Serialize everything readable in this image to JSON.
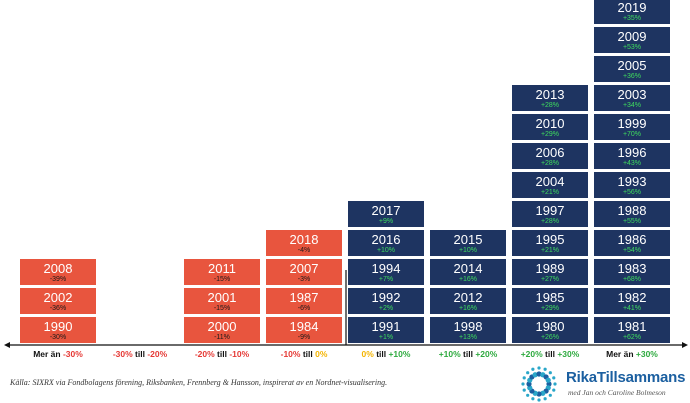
{
  "chart_data": {
    "type": "stacked-histogram",
    "categories": [
      {
        "label_prefix": "Mer än ",
        "low": "-30%",
        "connector": "",
        "high": "",
        "low_color": "#e53935",
        "high_color": "",
        "years": [
          {
            "year": "1990",
            "return": "-30%"
          },
          {
            "year": "2002",
            "return": "-36%"
          },
          {
            "year": "2008",
            "return": "-39%"
          }
        ]
      },
      {
        "label_prefix": "",
        "low": "-30%",
        "connector": " till ",
        "high": "-20%",
        "low_color": "#e53935",
        "high_color": "#e53935",
        "years": []
      },
      {
        "label_prefix": "",
        "low": "-20%",
        "connector": " till ",
        "high": "-10%",
        "low_color": "#e53935",
        "high_color": "#e53935",
        "years": [
          {
            "year": "2000",
            "return": "-11%"
          },
          {
            "year": "2001",
            "return": "-15%"
          },
          {
            "year": "2011",
            "return": "-15%"
          }
        ]
      },
      {
        "label_prefix": "",
        "low": "-10%",
        "connector": " till ",
        "high": "0%",
        "low_color": "#e53935",
        "high_color": "#f4b400",
        "years": [
          {
            "year": "1984",
            "return": "-9%"
          },
          {
            "year": "1987",
            "return": "-6%"
          },
          {
            "year": "2007",
            "return": "-3%"
          },
          {
            "year": "2018",
            "return": "-4%"
          }
        ]
      },
      {
        "label_prefix": "",
        "low": "0%",
        "connector": " till ",
        "high": "+10%",
        "low_color": "#f4b400",
        "high_color": "#2eaa3f",
        "years": [
          {
            "year": "1991",
            "return": "+1%"
          },
          {
            "year": "1992",
            "return": "+2%"
          },
          {
            "year": "1994",
            "return": "+7%"
          },
          {
            "year": "2016",
            "return": "+10%"
          },
          {
            "year": "2017",
            "return": "+9%"
          }
        ]
      },
      {
        "label_prefix": "",
        "low": "+10%",
        "connector": " till ",
        "high": "+20%",
        "low_color": "#2eaa3f",
        "high_color": "#2eaa3f",
        "years": [
          {
            "year": "1998",
            "return": "+13%"
          },
          {
            "year": "2012",
            "return": "+16%"
          },
          {
            "year": "2014",
            "return": "+16%"
          },
          {
            "year": "2015",
            "return": "+10%"
          }
        ]
      },
      {
        "label_prefix": "",
        "low": "+20%",
        "connector": " till ",
        "high": "+30%",
        "low_color": "#2eaa3f",
        "high_color": "#2eaa3f",
        "years": [
          {
            "year": "1980",
            "return": "+26%"
          },
          {
            "year": "1985",
            "return": "+29%"
          },
          {
            "year": "1989",
            "return": "+27%"
          },
          {
            "year": "1995",
            "return": "+21%"
          },
          {
            "year": "1997",
            "return": "+28%"
          },
          {
            "year": "2004",
            "return": "+21%"
          },
          {
            "year": "2006",
            "return": "+28%"
          },
          {
            "year": "2010",
            "return": "+29%"
          },
          {
            "year": "2013",
            "return": "+28%"
          }
        ]
      },
      {
        "label_prefix": "Mer än ",
        "low": "+30%",
        "connector": "",
        "high": "",
        "low_color": "#2eaa3f",
        "high_color": "",
        "years": [
          {
            "year": "1981",
            "return": "+62%"
          },
          {
            "year": "1982",
            "return": "+41%"
          },
          {
            "year": "1983",
            "return": "+68%"
          },
          {
            "year": "1986",
            "return": "+54%"
          },
          {
            "year": "1988",
            "return": "+55%"
          },
          {
            "year": "1993",
            "return": "+56%"
          },
          {
            "year": "1996",
            "return": "+43%"
          },
          {
            "year": "1999",
            "return": "+70%"
          },
          {
            "year": "2003",
            "return": "+34%"
          },
          {
            "year": "2005",
            "return": "+36%"
          },
          {
            "year": "2009",
            "return": "+53%"
          },
          {
            "year": "2019",
            "return": "+35%"
          }
        ]
      }
    ],
    "colors": {
      "negative": "#e8553e",
      "positive": "#1e3461",
      "axis": "#111111",
      "brand": "#1b5fa0",
      "positive_return_text": "#3fdc5e"
    }
  },
  "footer": {
    "source": "Källa: SIXRX via Fondbolagens förening, Riksbanken, Frennberg & Hansson, inspirerat av en Nordnet-visualisering.",
    "brand_name": "RikaTillsammans",
    "brand_sub": "med Jan och Caroline Bolmeson"
  }
}
